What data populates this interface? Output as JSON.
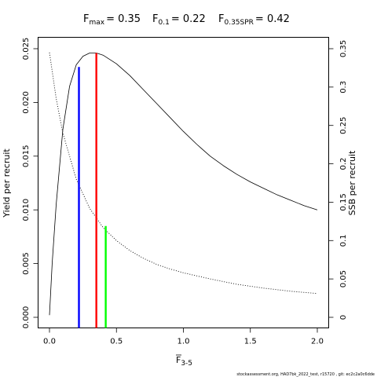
{
  "title": {
    "fmax": {
      "symbol": "F",
      "sub": "max",
      "value": "= 0.35"
    },
    "f01": {
      "symbol": "F",
      "sub": "0.1",
      "value": "= 0.22"
    },
    "fspr": {
      "symbol": "F",
      "sub": "0.35SPR",
      "value": "= 0.42"
    }
  },
  "footer": "stockassessment.org, HAD7bk_2022_test, r15720 , git: ec2c2a0c6dde",
  "chart_data": {
    "type": "line",
    "xlabel": {
      "main": "F",
      "sub": "3-5"
    },
    "ylabel": "Yield per recruit",
    "y2label": "SSB per recruit",
    "xlim": [
      0,
      2.0
    ],
    "ylim": [
      0,
      0.025
    ],
    "y2lim": [
      0,
      0.35
    ],
    "xticks": [
      0,
      0.5,
      1.0,
      1.5,
      2.0
    ],
    "xtick_labels": [
      "0.0",
      "0.5",
      "1.0",
      "1.5",
      "2.0"
    ],
    "yticks": [
      0,
      0.005,
      0.01,
      0.015,
      0.02,
      0.025
    ],
    "ytick_labels": [
      "0.000",
      "0.005",
      "0.010",
      "0.015",
      "0.020",
      "0.025"
    ],
    "y2ticks": [
      0,
      0.05,
      0.1,
      0.15,
      0.2,
      0.25,
      0.3,
      0.35
    ],
    "y2tick_labels": [
      "0",
      "0.05",
      "0.1",
      "0.15",
      "0.2",
      "0.25",
      "0.3",
      "0.35"
    ],
    "series": [
      {
        "axis": "left",
        "style": "solid",
        "x": [
          0.0,
          0.02,
          0.05,
          0.1,
          0.15,
          0.2,
          0.25,
          0.3,
          0.35,
          0.4,
          0.5,
          0.6,
          0.7,
          0.8,
          0.9,
          1.0,
          1.1,
          1.2,
          1.3,
          1.4,
          1.5,
          1.6,
          1.7,
          1.8,
          1.9,
          2.0
        ],
        "y": [
          0.0002,
          0.005,
          0.0105,
          0.0175,
          0.0215,
          0.0235,
          0.0243,
          0.0246,
          0.0246,
          0.0244,
          0.0236,
          0.0225,
          0.0212,
          0.0199,
          0.0186,
          0.0173,
          0.0161,
          0.015,
          0.0141,
          0.0133,
          0.0126,
          0.012,
          0.0114,
          0.0109,
          0.0104,
          0.01
        ]
      },
      {
        "axis": "right",
        "style": "dotted",
        "x": [
          0.0,
          0.05,
          0.1,
          0.2,
          0.3,
          0.4,
          0.5,
          0.6,
          0.7,
          0.8,
          0.9,
          1.0,
          1.2,
          1.4,
          1.6,
          1.8,
          2.0
        ],
        "y": [
          0.345,
          0.285,
          0.24,
          0.18,
          0.142,
          0.117,
          0.1,
          0.087,
          0.077,
          0.069,
          0.063,
          0.058,
          0.05,
          0.043,
          0.038,
          0.034,
          0.031
        ]
      }
    ],
    "reference_lines": [
      {
        "x": 0.22,
        "y": 0.0233,
        "color": "#0000ff"
      },
      {
        "x": 0.35,
        "y": 0.0246,
        "color": "#ff0000"
      },
      {
        "x": 0.42,
        "y": 0.0085,
        "color": "#00ff00"
      }
    ]
  }
}
